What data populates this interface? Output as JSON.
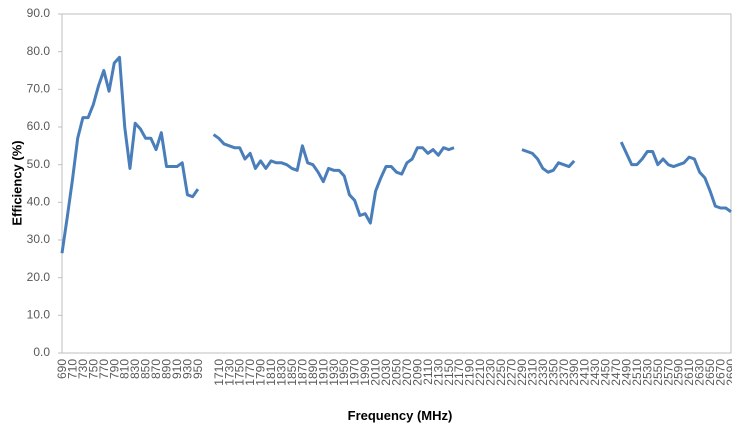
{
  "chart_data": {
    "type": "line",
    "x_label": "Frequency (MHz)",
    "y_label": "Efficiency (%)",
    "categories": [
      "690",
      null,
      "710",
      null,
      "730",
      null,
      "750",
      null,
      "770",
      null,
      "790",
      null,
      "810",
      null,
      "830",
      null,
      "850",
      null,
      "870",
      null,
      "890",
      null,
      "910",
      null,
      "930",
      null,
      "950",
      null,
      null,
      null,
      "1710",
      null,
      "1730",
      null,
      "1750",
      null,
      "1770",
      null,
      "1790",
      null,
      "1810",
      null,
      "1830",
      null,
      "1850",
      null,
      "1870",
      null,
      "1890",
      null,
      "1910",
      null,
      "1930",
      null,
      "1950",
      null,
      "1970",
      null,
      "1990",
      null,
      "2010",
      null,
      "2030",
      null,
      "2050",
      null,
      "2070",
      null,
      "2090",
      null,
      "2110",
      null,
      "2130",
      null,
      "2150",
      null,
      "2170",
      null,
      "2190",
      null,
      "2210",
      null,
      "2230",
      null,
      "2250",
      null,
      "2270",
      null,
      "2290",
      null,
      "2310",
      null,
      "2330",
      null,
      "2350",
      null,
      "2370",
      null,
      "2390",
      null,
      "2410",
      null,
      "2430",
      null,
      "2450",
      null,
      "2470",
      null,
      "2490",
      null,
      "2510",
      null,
      "2530",
      null,
      "2550",
      null,
      "2570",
      null,
      "2590",
      null,
      "2610",
      null,
      "2630",
      null,
      "2650",
      null,
      "2670",
      null,
      "2690"
    ],
    "series": [
      {
        "color": "#4a7ebb",
        "values": [
          26.5,
          36,
          46,
          57,
          62.5,
          62.5,
          66,
          71,
          75,
          69.5,
          77,
          78.5,
          60,
          49,
          61,
          59.5,
          57,
          57,
          54,
          58.5,
          49.5,
          49.5,
          49.5,
          50.5,
          42,
          41.5,
          43.5,
          null,
          null,
          58,
          57,
          55.5,
          55,
          54.5,
          54.5,
          51.5,
          53,
          49,
          51,
          49,
          51,
          50.5,
          50.5,
          50,
          49,
          48.5,
          55,
          50.5,
          50,
          48,
          45.5,
          49,
          48.5,
          48.5,
          47,
          42,
          40.5,
          36.5,
          37,
          34.5,
          43,
          46.5,
          49.5,
          49.5,
          48,
          47.5,
          50.5,
          51.5,
          54.5,
          54.5,
          53,
          54,
          52.5,
          54.5,
          54,
          54.5,
          null,
          null,
          null,
          null,
          null,
          null,
          null,
          null,
          null,
          null,
          null,
          null,
          54,
          53.5,
          53,
          51.5,
          49,
          48,
          48.5,
          50.5,
          50,
          49.5,
          51,
          null,
          null,
          null,
          null,
          null,
          null,
          null,
          null,
          56,
          53,
          50,
          50,
          51.5,
          53.5,
          53.5,
          50,
          51.5,
          50,
          49.5,
          50,
          50.5,
          52,
          51.5,
          48,
          46.5,
          43,
          39,
          38.5,
          38.5,
          37.5
        ]
      }
    ],
    "ylim": [
      0,
      90
    ],
    "yticks": [
      {
        "value": 0,
        "label": "0.0"
      },
      {
        "value": 10,
        "label": "10.0"
      },
      {
        "value": 20,
        "label": "20.0"
      },
      {
        "value": 30,
        "label": "30.0"
      },
      {
        "value": 40,
        "label": "40.0"
      },
      {
        "value": 50,
        "label": "50.0"
      },
      {
        "value": 60,
        "label": "60.0"
      },
      {
        "value": 70,
        "label": "70.0"
      },
      {
        "value": 80,
        "label": "80.0"
      },
      {
        "value": 90,
        "label": "90.0"
      }
    ],
    "grid": false
  }
}
